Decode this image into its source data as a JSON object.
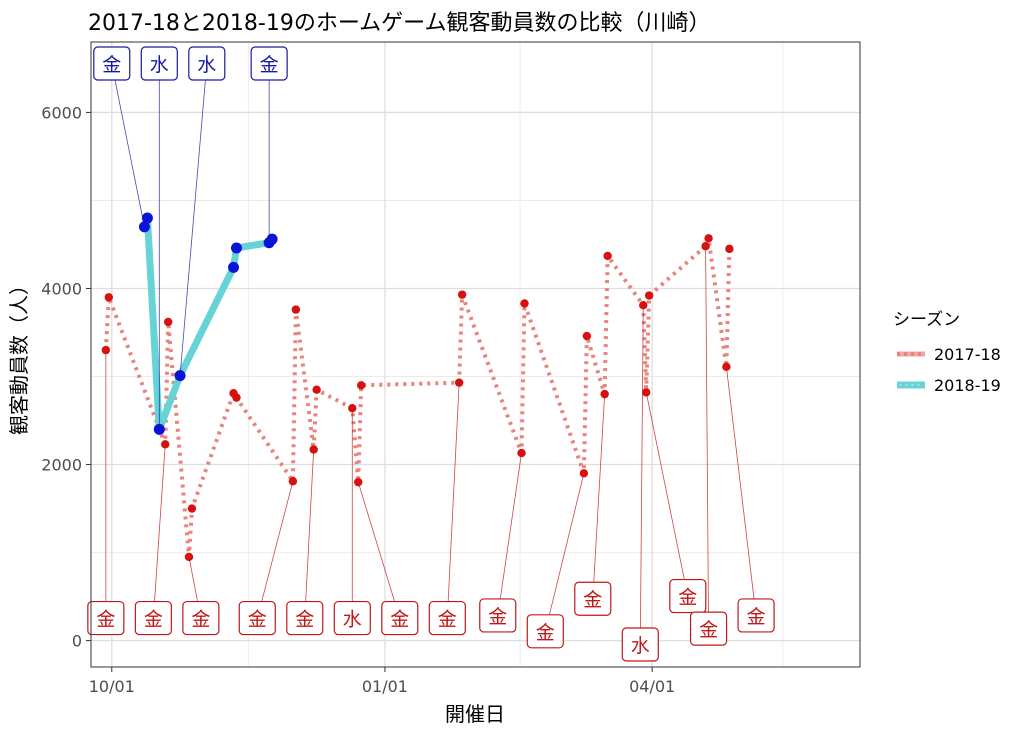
{
  "chart_data": {
    "type": "line",
    "title": "2017-18と2018-19のホームゲーム観客動員数の比較（川崎）",
    "xlabel": "開催日",
    "ylabel": "観客動員数（人）",
    "x_domain": [
      -7,
      252
    ],
    "y_domain": [
      -300,
      6800
    ],
    "x_ticks": [
      {
        "day": 0,
        "label": "10/01"
      },
      {
        "day": 92,
        "label": "01/01"
      },
      {
        "day": 182,
        "label": "04/01"
      }
    ],
    "x_minor": [
      46,
      137.5,
      226
    ],
    "y_ticks": [
      0,
      2000,
      4000,
      6000
    ],
    "y_minor": [
      1000,
      3000,
      5000
    ],
    "legend": {
      "title": "シーズン",
      "entries": [
        "2017-18",
        "2018-19"
      ],
      "placement": "right"
    },
    "series": [
      {
        "name": "2017-18",
        "color": "#e8837d",
        "point_color": "#d91010",
        "label_color": "#c01818",
        "points": [
          {
            "x": -2,
            "y": 3300,
            "label": "金",
            "lx": -2,
            "ly": 250
          },
          {
            "x": -1,
            "y": 3900,
            "label": "",
            "lx": null,
            "ly": null
          },
          {
            "x": 18,
            "y": 2230,
            "label": "金",
            "lx": 14,
            "ly": 250
          },
          {
            "x": 19,
            "y": 3620,
            "label": "",
            "lx": null,
            "ly": null
          },
          {
            "x": 26,
            "y": 950,
            "label": "金",
            "lx": 30,
            "ly": 250
          },
          {
            "x": 27,
            "y": 1500,
            "label": "",
            "lx": null,
            "ly": null
          },
          {
            "x": 41,
            "y": 2810,
            "label": "",
            "lx": null,
            "ly": null
          },
          {
            "x": 42,
            "y": 2760,
            "label": "",
            "lx": null,
            "ly": null
          },
          {
            "x": 61,
            "y": 1810,
            "label": "金",
            "lx": 49,
            "ly": 250
          },
          {
            "x": 62,
            "y": 3760,
            "label": "",
            "lx": null,
            "ly": null
          },
          {
            "x": 68,
            "y": 2170,
            "label": "金",
            "lx": 65,
            "ly": 250
          },
          {
            "x": 69,
            "y": 2850,
            "label": "",
            "lx": null,
            "ly": null
          },
          {
            "x": 81,
            "y": 2640,
            "label": "水",
            "lx": 81,
            "ly": 250
          },
          {
            "x": 83,
            "y": 1800,
            "label": "金",
            "lx": 97,
            "ly": 250
          },
          {
            "x": 84,
            "y": 2900,
            "label": "",
            "lx": null,
            "ly": null
          },
          {
            "x": 117,
            "y": 2930,
            "label": "金",
            "lx": 113,
            "ly": 250
          },
          {
            "x": 118,
            "y": 3930,
            "label": "",
            "lx": null,
            "ly": null
          },
          {
            "x": 138,
            "y": 2130,
            "label": "金",
            "lx": 130,
            "ly": 280
          },
          {
            "x": 139,
            "y": 3830,
            "label": "",
            "lx": null,
            "ly": null
          },
          {
            "x": 159,
            "y": 1900,
            "label": "金",
            "lx": 146,
            "ly": 100
          },
          {
            "x": 160,
            "y": 3460,
            "label": "",
            "lx": null,
            "ly": null
          },
          {
            "x": 166,
            "y": 2800,
            "label": "金",
            "lx": 162,
            "ly": 470
          },
          {
            "x": 167,
            "y": 4370,
            "label": "",
            "lx": null,
            "ly": null
          },
          {
            "x": 179,
            "y": 3810,
            "label": "水",
            "lx": 178,
            "ly": -50
          },
          {
            "x": 180,
            "y": 2820,
            "label": "金",
            "lx": 194,
            "ly": 500
          },
          {
            "x": 181,
            "y": 3920,
            "label": "",
            "lx": null,
            "ly": null
          },
          {
            "x": 200,
            "y": 4480,
            "label": "金",
            "lx": 201,
            "ly": 130
          },
          {
            "x": 201,
            "y": 4570,
            "label": "",
            "lx": null,
            "ly": null
          },
          {
            "x": 207,
            "y": 3110,
            "label": "金",
            "lx": 217,
            "ly": 280
          },
          {
            "x": 208,
            "y": 4450,
            "label": "",
            "lx": null,
            "ly": null
          }
        ]
      },
      {
        "name": "2018-19",
        "color": "#66d4d6",
        "point_color": "#0a14d8",
        "label_color": "#1a1aa0",
        "points": [
          {
            "x": 11,
            "y": 4700,
            "label": "金",
            "lx": 0,
            "ly": 6550
          },
          {
            "x": 12,
            "y": 4800,
            "label": "",
            "lx": null,
            "ly": null
          },
          {
            "x": 16,
            "y": 2400,
            "label": "水",
            "lx": 16,
            "ly": 6550
          },
          {
            "x": 23,
            "y": 3010,
            "label": "水",
            "lx": 32,
            "ly": 6550
          },
          {
            "x": 41,
            "y": 4240,
            "label": "",
            "lx": null,
            "ly": null
          },
          {
            "x": 42,
            "y": 4460,
            "label": "",
            "lx": null,
            "ly": null
          },
          {
            "x": 53,
            "y": 4520,
            "label": "金",
            "lx": 53,
            "ly": 6550
          },
          {
            "x": 54,
            "y": 4560,
            "label": "",
            "lx": null,
            "ly": null
          }
        ]
      }
    ]
  }
}
